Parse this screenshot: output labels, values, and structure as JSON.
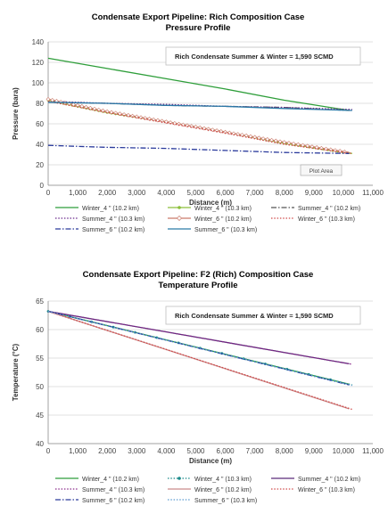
{
  "chart_data": [
    {
      "type": "line",
      "title": "Condensate Export Pipeline: Rich Composition Case",
      "subtitle": "Pressure Profile",
      "xlabel": "Distance (m)",
      "ylabel": "Pressure (bara)",
      "xlim": [
        0,
        11000
      ],
      "ylim": [
        0,
        140
      ],
      "xticks": [
        "0",
        "1,000",
        "2,000",
        "3,000",
        "4,000",
        "5,000",
        "6,000",
        "7,000",
        "8,000",
        "9,000",
        "10,000",
        "11,000"
      ],
      "yticks": [
        "0",
        "20",
        "40",
        "60",
        "80",
        "100",
        "120",
        "140"
      ],
      "grid": true,
      "annotation": "Rich Condensate Summer & Winter = 1,590 SCMD",
      "tooltip": "Plot Area",
      "legend_position": "bottom",
      "series": [
        {
          "name": "Winter_4 \" (10.2 km)",
          "color": "#2e9e3a",
          "style": "solid",
          "marker": "none",
          "x": [
            0,
            2000,
            4000,
            6000,
            8000,
            10200
          ],
          "y": [
            124,
            114,
            104,
            94,
            83,
            73
          ]
        },
        {
          "name": "Winter_4 \" (10.3 km)",
          "color": "#8cbf3a",
          "style": "solid",
          "marker": "dot",
          "x": [
            0,
            2000,
            4000,
            6000,
            8000,
            10300
          ],
          "y": [
            83,
            71,
            62,
            52,
            41,
            31
          ]
        },
        {
          "name": "Summer_4 \" (10.2 km)",
          "color": "#555555",
          "style": "dashdot",
          "marker": "none",
          "x": [
            0,
            2000,
            4000,
            6000,
            8000,
            10200
          ],
          "y": [
            81,
            80,
            78,
            77,
            76,
            73
          ]
        },
        {
          "name": "Summer_4 \" (10.3 km)",
          "color": "#6a2a8c",
          "style": "dotted",
          "marker": "none",
          "x": [
            0,
            2000,
            4000,
            6000,
            8000,
            10300
          ],
          "y": [
            82,
            80,
            79,
            77,
            76,
            74
          ]
        },
        {
          "name": "Winter_6 \" (10.2 km)",
          "color": "#c97a6a",
          "style": "solid",
          "marker": "diamond",
          "x": [
            0,
            2000,
            4000,
            6000,
            8000,
            10200
          ],
          "y": [
            84,
            72,
            62,
            52,
            42,
            32
          ]
        },
        {
          "name": "Winter_6 \" (10.3 km)",
          "color": "#d04a4a",
          "style": "dotted",
          "marker": "none",
          "x": [
            0,
            2000,
            4000,
            6000,
            8000,
            10300
          ],
          "y": [
            82,
            71,
            61,
            51,
            40,
            31
          ]
        },
        {
          "name": "Summer_6 \" (10.2 km)",
          "color": "#2a3a9c",
          "style": "dashdot",
          "marker": "none",
          "x": [
            0,
            2000,
            4000,
            6000,
            8000,
            10200
          ],
          "y": [
            39,
            37,
            36,
            34,
            32,
            31
          ]
        },
        {
          "name": "Summer_6 \" (10.3 km)",
          "color": "#2a7aa8",
          "style": "solid",
          "marker": "none",
          "x": [
            0,
            2000,
            4000,
            6000,
            8000,
            10300
          ],
          "y": [
            81,
            80,
            78,
            77,
            75,
            73
          ]
        }
      ]
    },
    {
      "type": "line",
      "title": "Condensate Export Pipeline: F2 (Rich) Composition Case",
      "subtitle": "Temperature Profile",
      "xlabel": "Distance (m)",
      "ylabel": "Temperature (°C)",
      "xlim": [
        0,
        11000
      ],
      "ylim": [
        40,
        65
      ],
      "xticks": [
        "0",
        "1,000",
        "2,000",
        "3,000",
        "4,000",
        "5,000",
        "6,000",
        "7,000",
        "8,000",
        "9,000",
        "10,000",
        "11,000"
      ],
      "yticks": [
        "40",
        "45",
        "50",
        "55",
        "60",
        "65"
      ],
      "grid": true,
      "annotation": "Rich Condensate Summer & Winter = 1,590 SCMD",
      "legend_position": "bottom",
      "series": [
        {
          "name": "Winter_4 \" (10.2 km)",
          "color": "#2e9e3a",
          "style": "solid",
          "marker": "none",
          "x": [
            0,
            10200
          ],
          "y": [
            63.2,
            50.4
          ]
        },
        {
          "name": "Winter_4 \" (10.3 km)",
          "color": "#1a8a8a",
          "style": "dotted",
          "marker": "dot",
          "x": [
            0,
            10300
          ],
          "y": [
            63.2,
            50.3
          ]
        },
        {
          "name": "Summer_4 \" (10.2 km)",
          "color": "#5a2a7a",
          "style": "solid",
          "marker": "none",
          "x": [
            0,
            10200
          ],
          "y": [
            63.2,
            54.0
          ]
        },
        {
          "name": "Summer_4 \" (10.3 km)",
          "color": "#8a2a8a",
          "style": "dotted",
          "marker": "none",
          "x": [
            0,
            10300
          ],
          "y": [
            63.2,
            53.9
          ]
        },
        {
          "name": "Winter_6 \" (10.2 km)",
          "color": "#c98a8a",
          "style": "solid",
          "marker": "none",
          "x": [
            0,
            10200
          ],
          "y": [
            63.2,
            46.1
          ]
        },
        {
          "name": "Winter_6 \" (10.3 km)",
          "color": "#d04a4a",
          "style": "dotted",
          "marker": "none",
          "x": [
            0,
            10300
          ],
          "y": [
            63.2,
            46.0
          ]
        },
        {
          "name": "Summer_6 \" (10.2 km)",
          "color": "#2a3a9c",
          "style": "dashdot",
          "marker": "none",
          "x": [
            0,
            10200
          ],
          "y": [
            63.2,
            50.3
          ]
        },
        {
          "name": "Summer_6 \" (10.3 km)",
          "color": "#5a9ad0",
          "style": "dotted",
          "marker": "none",
          "x": [
            0,
            10300
          ],
          "y": [
            63.2,
            50.2
          ]
        }
      ]
    }
  ]
}
